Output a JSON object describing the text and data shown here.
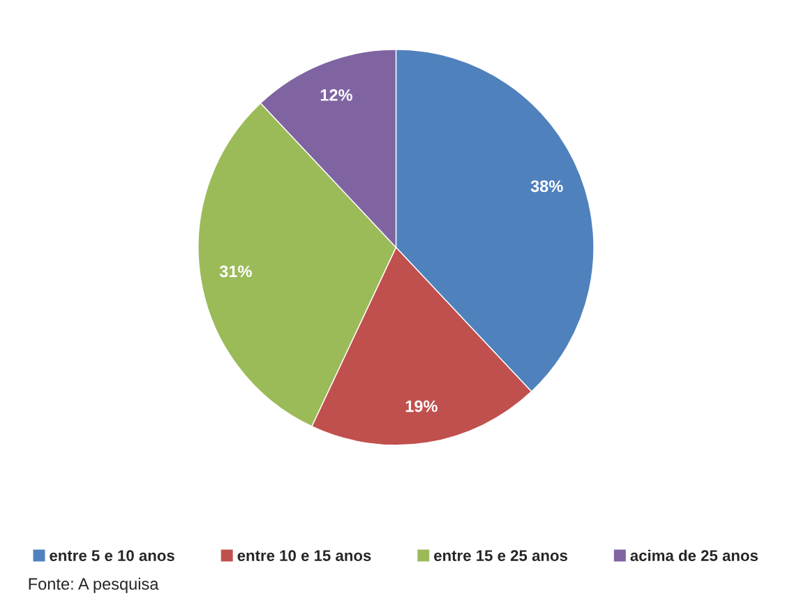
{
  "chart_data": {
    "type": "pie",
    "categories": [
      "entre 5 e 10 anos",
      "entre 10 e 15 anos",
      "entre 15 e 25 anos",
      "acima de 25 anos"
    ],
    "values": [
      38,
      19,
      31,
      12
    ],
    "colors": [
      "#4f81bd",
      "#c0504d",
      "#9bbb59",
      "#8064a2"
    ],
    "value_labels": [
      "38%",
      "19%",
      "31%",
      "12%"
    ],
    "legend": "bottom",
    "annotations": [
      "Fonte: A pesquisa"
    ]
  }
}
